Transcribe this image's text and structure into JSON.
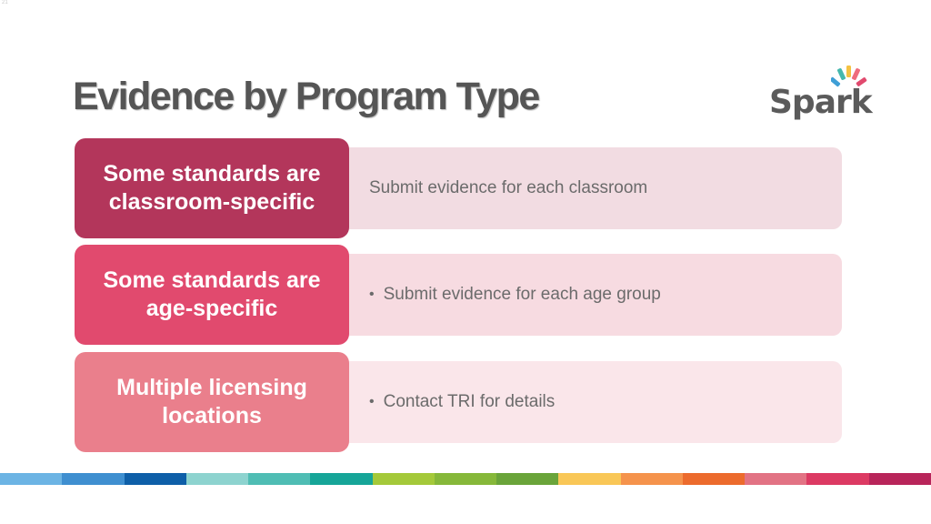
{
  "slide": {
    "number": "21"
  },
  "header": {
    "title": "Evidence by Program Type",
    "logo_text": "Spark"
  },
  "rows": [
    {
      "label": "Some standards are classroom-specific",
      "description": "Submit evidence for each classroom",
      "bullet": ""
    },
    {
      "label": "Some standards are age-specific",
      "description": "Submit evidence for each age group",
      "bullet": "•"
    },
    {
      "label": "Multiple licensing locations",
      "description": "Contact TRI for details",
      "bullet": "•"
    }
  ],
  "colors": {
    "row1_label": "#b3365b",
    "row2_label": "#e14a6e",
    "row3_label": "#ea7f8c",
    "title_text": "#555555",
    "stripe": [
      "#6cb4e4",
      "#3f8fd0",
      "#0e5fa8",
      "#8dd3cf",
      "#4fbdb4",
      "#16a598",
      "#a4c93a",
      "#86b83a",
      "#6aa43a",
      "#f9c757",
      "#f5934c",
      "#ec6b2d",
      "#e27384",
      "#dc3a63",
      "#b8255a"
    ]
  },
  "logo": {
    "ray_colors": [
      "#3f9fd6",
      "#46b8ad",
      "#f5c242",
      "#ef6c7c",
      "#6aa84f"
    ]
  }
}
